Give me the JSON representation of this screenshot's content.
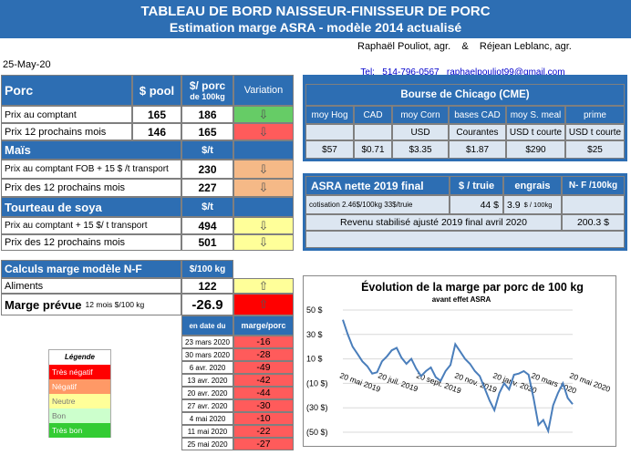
{
  "header": {
    "title_line1": "TABLEAU DE BORD NAISSEUR-FINISSEUR DE PORC",
    "title_line2": "Estimation marge ASRA - modèle 2014 actualisé",
    "authors": "Raphaël Pouliot, agr.    &    Réjean Leblanc, agr.",
    "contact_label": "Tel:",
    "contact_value": "514-796-0567   raphaelpouliot99@gmail.com",
    "date": "25-May-20"
  },
  "porc": {
    "label": "Porc",
    "col_pool": "$ pool",
    "col_porc_line1": "$/ porc",
    "col_porc_line2": "de 100kg",
    "col_variation": "Variation",
    "rows": [
      {
        "label": "Prix au comptant",
        "pool": "165",
        "porc": "186"
      },
      {
        "label": "Prix 12 prochains mois",
        "pool": "146",
        "porc": "165"
      }
    ]
  },
  "mais": {
    "label": "Maïs",
    "unit": "$/t",
    "rows": [
      {
        "label": "Prix au comptant  FOB + 15 $ /t transport",
        "value": "230"
      },
      {
        "label": "Prix des 12 prochains mois",
        "value": "227"
      }
    ]
  },
  "soya": {
    "label": "Tourteau de soya",
    "unit": "$/t",
    "rows": [
      {
        "label": "Prix au comptant  + 15 $/ t  transport",
        "value": "494"
      },
      {
        "label": "Prix des 12 prochains mois",
        "value": "501"
      }
    ]
  },
  "calculs": {
    "label": "Calculs marge  modèle N-F",
    "unit": "$/100 kg",
    "aliments_label": "Aliments",
    "aliments_value": "122",
    "marge_label": "Marge prévue",
    "marge_sub": "12 mois  $/100 kg",
    "marge_value": "-26.9"
  },
  "cme": {
    "title": "Bourse de Chicago (CME)",
    "headers": [
      "moy Hog",
      "CAD",
      "moy Corn",
      "bases CAD",
      "moy S. meal",
      "prime"
    ],
    "units": [
      "",
      "",
      "USD",
      "Courantes",
      "USD t courte",
      "USD t courte"
    ],
    "values": [
      "$57",
      "$0.71",
      "$3.35",
      "$1.87",
      "$290",
      "$25"
    ]
  },
  "asra": {
    "title": "ASRA nette 2019 final",
    "col_truie": "$ / truie",
    "col_engrais": "engrais",
    "col_nf": "N- F /100kg",
    "cotisation_label": "cotisation 2.46$/100kg  33$/truie",
    "truie_value": "44  $",
    "engrais_value": "3.9",
    "engrais_unit": "$ / 100kg",
    "revenu_label": "Revenu stabilisé ajusté 2019 final  avril 2020",
    "revenu_value": "200.3 $"
  },
  "history": {
    "col_date": "en date du",
    "col_marge": "marge/porc",
    "rows": [
      {
        "date": "23 mars 2020",
        "marge": "-16"
      },
      {
        "date": "30 mars 2020",
        "marge": "-28"
      },
      {
        "date": "6 avr. 2020",
        "marge": "-49"
      },
      {
        "date": "13 avr. 2020",
        "marge": "-42"
      },
      {
        "date": "20 avr. 2020",
        "marge": "-44"
      },
      {
        "date": "27 avr. 2020",
        "marge": "-30"
      },
      {
        "date": "4 mai 2020",
        "marge": "-10"
      },
      {
        "date": "11 mai 2020",
        "marge": "-22"
      },
      {
        "date": "25 mai 2020",
        "marge": "-27"
      }
    ]
  },
  "legend": {
    "title": "Légende",
    "items": [
      {
        "label": "Très négatif",
        "color": "#FF0000"
      },
      {
        "label": "Négatif",
        "color": "#FF9966"
      },
      {
        "label": "Neutre",
        "color": "#FFFF99"
      },
      {
        "label": "Bon",
        "color": "#CCFFCC"
      },
      {
        "label": "Très bon",
        "color": "#33CC33"
      }
    ]
  },
  "colors": {
    "brand_blue": "#2D6EB3",
    "green": "#66CC66",
    "red": "#FF5B5B",
    "orange": "#F5B987",
    "yellow": "#FFFF99",
    "light_blue": "#DCE6F1"
  },
  "chart_data": {
    "type": "line",
    "title": "Évolution de la marge par porc de 100 kg",
    "subtitle": "avant effet ASRA",
    "y_tick_labels": [
      "50 $",
      "30 $",
      "10 $",
      "(10 $)",
      "(30 $)",
      "(50 $)"
    ],
    "ylim": [
      -50,
      50
    ],
    "x_tick_labels": [
      "20 mai 2019",
      "20 juil. 2019",
      "20 sept. 2019",
      "20 nov. 2019",
      "20 janv. 2020",
      "20 mars 2020",
      "20 mai 2020"
    ],
    "series": [
      {
        "name": "marge par porc",
        "values": [
          42,
          30,
          20,
          14,
          8,
          4,
          -2,
          -1,
          8,
          12,
          17,
          19,
          11,
          6,
          10,
          2,
          -4,
          0,
          3,
          -5,
          -8,
          0,
          5,
          22,
          16,
          10,
          6,
          0,
          -4,
          -14,
          -24,
          -32,
          -18,
          -10,
          -15,
          -3,
          -2,
          0,
          -3,
          -22,
          -44,
          -40,
          -49,
          -28,
          -18,
          -10,
          -22,
          -27
        ]
      }
    ]
  }
}
